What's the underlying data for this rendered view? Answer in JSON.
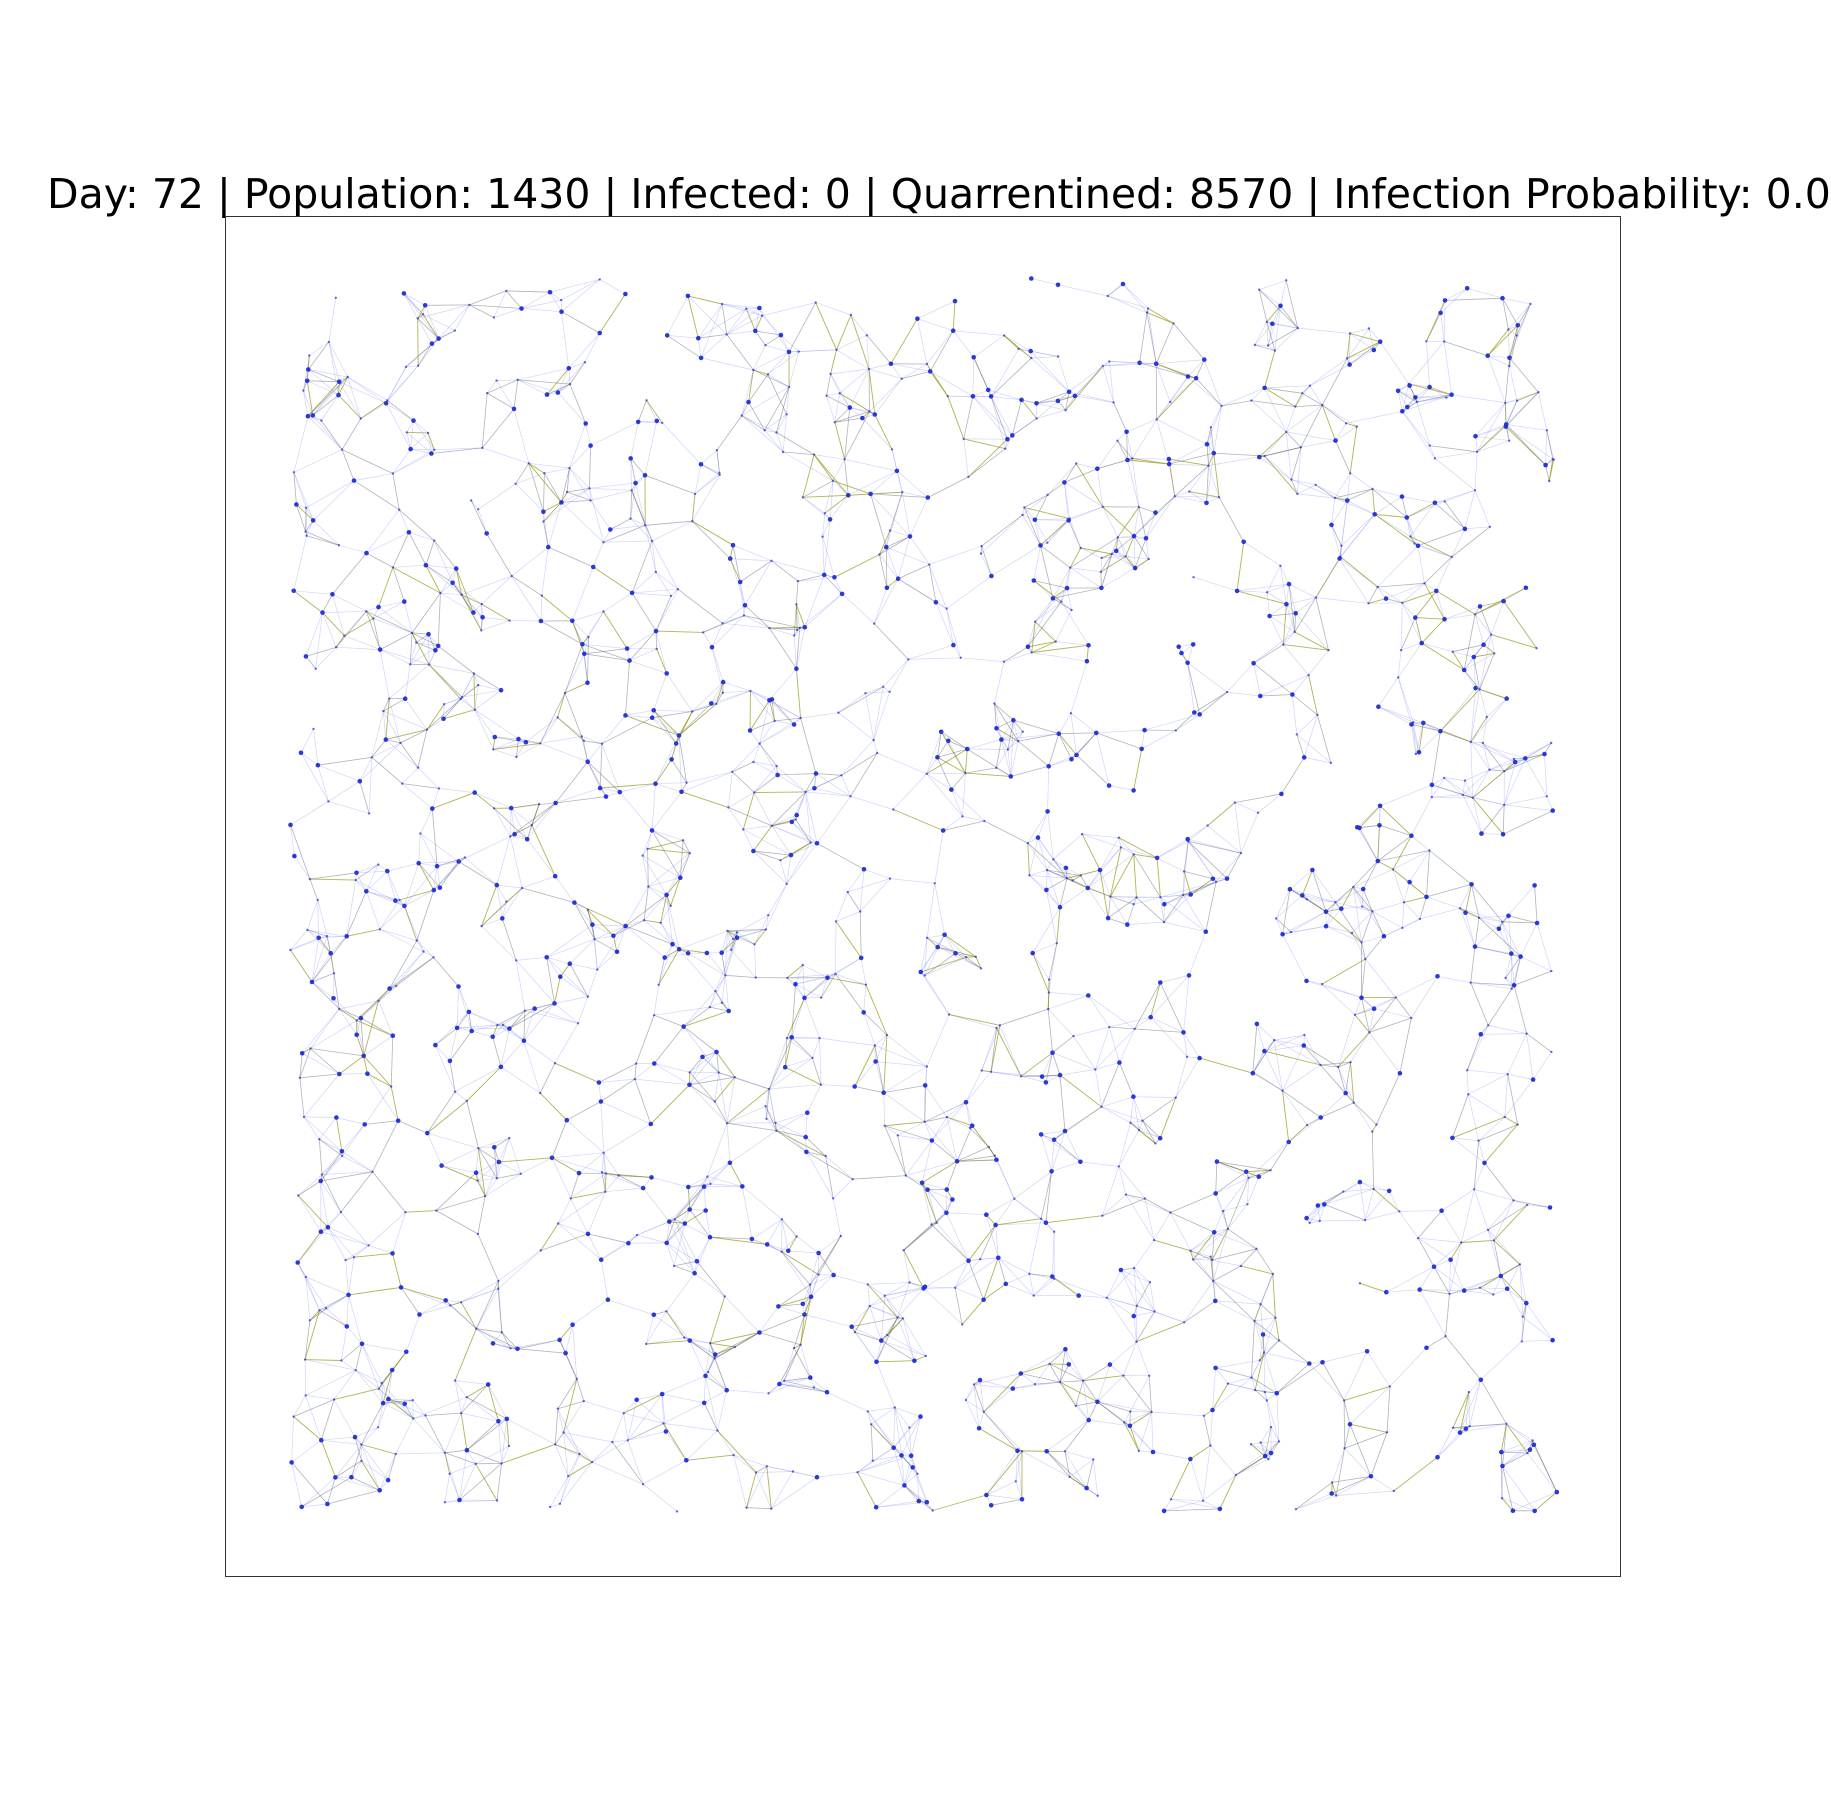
{
  "title": {
    "day_label": "Day",
    "day": 72,
    "population_label": "Population",
    "population": 1430,
    "infected_label": "Infected",
    "infected": 0,
    "quarantined_label": "Quarrentined",
    "quarantined": 8570,
    "infection_probability_label": "Infection Probability",
    "infection_probability": "0.0",
    "text": "Day: 72 | Population: 1430 | Infected: 0 | Quarrentined: 8570 | Infection Probability: 0.0"
  },
  "network": {
    "node_color": "#1f2fd6",
    "edge_color_light": "#7f86f0",
    "edge_color_dark": "#50586a",
    "edge_color_highlight": "#9a9a1e",
    "frame_color": "#333333"
  }
}
